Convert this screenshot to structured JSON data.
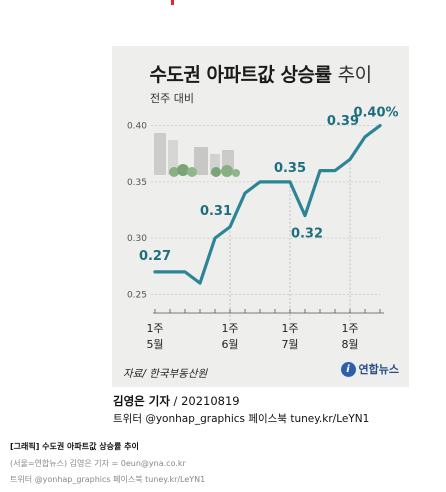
{
  "header_mark_color": "#e8281e",
  "graphic": {
    "title_bold": "수도권 아파트값 상승률",
    "title_light": "추이",
    "unit_label": "전주 대비",
    "source": "자료/ 한국부동산원",
    "logo_text": "연합뉴스",
    "logo_mark": "i"
  },
  "chart_data": {
    "type": "line",
    "title": "수도권 아파트값 상승률 추이",
    "subtitle": "전주 대비",
    "y_ticks": [
      "0.25",
      "0.30",
      "0.35",
      "0.40"
    ],
    "ylim": [
      0.245,
      0.405
    ],
    "x_tick_labels": [
      {
        "index": 0,
        "top": "1주",
        "bottom": "5월"
      },
      {
        "index": 5,
        "top": "1주",
        "bottom": "6월"
      },
      {
        "index": 9,
        "top": "1주",
        "bottom": "7월"
      },
      {
        "index": 13,
        "top": "1주",
        "bottom": "8월"
      }
    ],
    "series": [
      {
        "values": [
          0.27,
          0.27,
          0.27,
          0.26,
          0.3,
          0.31,
          0.34,
          0.35,
          0.35,
          0.35,
          0.32,
          0.36,
          0.36,
          0.37,
          0.39,
          0.4
        ],
        "color": "#2c8597"
      }
    ],
    "data_labels": [
      {
        "index": 0,
        "text": "0.27"
      },
      {
        "index": 5,
        "text": "0.31"
      },
      {
        "index": 9,
        "text": "0.35"
      },
      {
        "index": 10,
        "text": "0.32"
      },
      {
        "index": 14,
        "text": "0.39"
      },
      {
        "index": 15,
        "text": "0.40%"
      }
    ],
    "grid": true,
    "vertical_guides_at": [
      5,
      9,
      13
    ]
  },
  "credit": {
    "author": "김영은 기자",
    "code": " / 20210819",
    "social": "트위터 @yonhap_graphics  페이스북 tuney.kr/LeYN1"
  },
  "footer": {
    "line1": "[그래픽] 수도권 아파트값 상승률 추이",
    "line2": "(서울=연합뉴스) 김영은 기자 = 0eun@yna.co.kr",
    "line3": "트위터 @yonhap_graphics 페이스북 tuney.kr/LeYN1"
  }
}
